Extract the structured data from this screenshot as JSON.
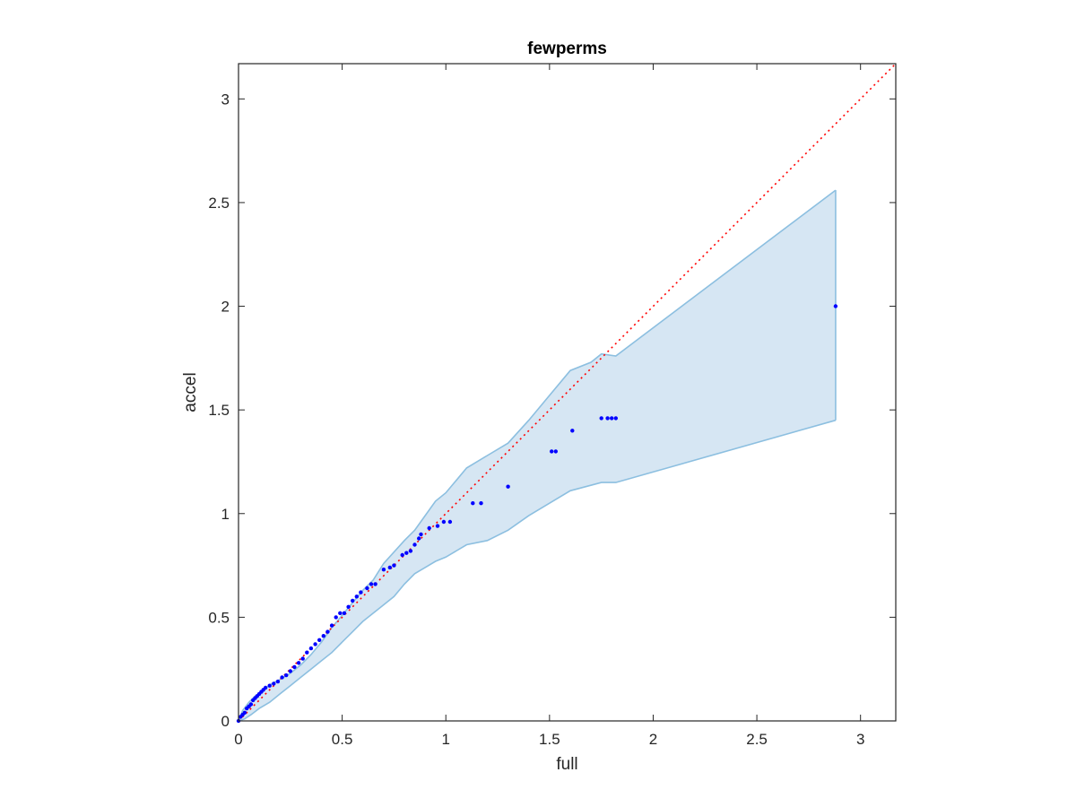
{
  "chart_data": {
    "type": "scatter",
    "title": "fewperms",
    "xlabel": "full",
    "ylabel": "accel",
    "xlim": [
      0,
      3.17
    ],
    "ylim": [
      0,
      3.17
    ],
    "xticks": [
      0,
      0.5,
      1,
      1.5,
      2,
      2.5,
      3
    ],
    "yticks": [
      0,
      0.5,
      1,
      1.5,
      2,
      2.5,
      3
    ],
    "xtick_labels": [
      "0",
      "0.5",
      "1",
      "1.5",
      "2",
      "2.5",
      "3"
    ],
    "ytick_labels": [
      "0",
      "0.5",
      "1",
      "1.5",
      "2",
      "2.5",
      "3"
    ],
    "grid": false,
    "colors": {
      "points": "#0000ff",
      "band_fill": "#d6e6f3",
      "band_edge": "#8cbfe0",
      "reference_line": "#ff0000",
      "axes": "#262626"
    },
    "reference_line": {
      "style": "dotted",
      "from": [
        0,
        0
      ],
      "to": [
        3.17,
        3.17
      ]
    },
    "band": {
      "upper": [
        [
          0,
          0
        ],
        [
          0.02,
          0.05
        ],
        [
          0.05,
          0.09
        ],
        [
          0.08,
          0.12
        ],
        [
          0.12,
          0.15
        ],
        [
          0.16,
          0.18
        ],
        [
          0.2,
          0.2
        ],
        [
          0.25,
          0.23
        ],
        [
          0.3,
          0.27
        ],
        [
          0.35,
          0.32
        ],
        [
          0.4,
          0.38
        ],
        [
          0.45,
          0.45
        ],
        [
          0.5,
          0.51
        ],
        [
          0.55,
          0.57
        ],
        [
          0.6,
          0.63
        ],
        [
          0.65,
          0.68
        ],
        [
          0.7,
          0.76
        ],
        [
          0.8,
          0.87
        ],
        [
          0.85,
          0.92
        ],
        [
          0.9,
          0.99
        ],
        [
          0.95,
          1.06
        ],
        [
          1.0,
          1.1
        ],
        [
          1.05,
          1.16
        ],
        [
          1.1,
          1.22
        ],
        [
          1.2,
          1.28
        ],
        [
          1.3,
          1.34
        ],
        [
          1.4,
          1.45
        ],
        [
          1.5,
          1.57
        ],
        [
          1.6,
          1.69
        ],
        [
          1.7,
          1.73
        ],
        [
          1.75,
          1.77
        ],
        [
          1.82,
          1.76
        ],
        [
          2.88,
          2.56
        ]
      ],
      "lower": [
        [
          0,
          0
        ],
        [
          0.03,
          0.01
        ],
        [
          0.06,
          0.03
        ],
        [
          0.1,
          0.06
        ],
        [
          0.15,
          0.09
        ],
        [
          0.2,
          0.13
        ],
        [
          0.25,
          0.17
        ],
        [
          0.3,
          0.21
        ],
        [
          0.35,
          0.25
        ],
        [
          0.4,
          0.29
        ],
        [
          0.45,
          0.33
        ],
        [
          0.5,
          0.38
        ],
        [
          0.55,
          0.43
        ],
        [
          0.6,
          0.48
        ],
        [
          0.65,
          0.52
        ],
        [
          0.7,
          0.56
        ],
        [
          0.75,
          0.6
        ],
        [
          0.8,
          0.66
        ],
        [
          0.85,
          0.71
        ],
        [
          0.9,
          0.74
        ],
        [
          0.95,
          0.77
        ],
        [
          1.0,
          0.79
        ],
        [
          1.1,
          0.85
        ],
        [
          1.2,
          0.87
        ],
        [
          1.3,
          0.92
        ],
        [
          1.4,
          0.99
        ],
        [
          1.5,
          1.05
        ],
        [
          1.6,
          1.11
        ],
        [
          1.75,
          1.15
        ],
        [
          1.82,
          1.15
        ],
        [
          2.88,
          1.45
        ]
      ]
    },
    "series": [
      {
        "x": [
          0,
          0.01,
          0.02,
          0.03,
          0.04,
          0.05,
          0.06,
          0.07,
          0.08,
          0.09,
          0.1,
          0.11,
          0.12,
          0.13,
          0.15,
          0.17,
          0.19,
          0.21,
          0.23,
          0.25,
          0.27,
          0.29,
          0.31,
          0.33,
          0.35,
          0.37,
          0.39,
          0.41,
          0.43,
          0.45,
          0.47,
          0.49,
          0.51,
          0.53,
          0.55,
          0.57,
          0.59,
          0.62,
          0.64,
          0.66,
          0.7,
          0.73,
          0.75,
          0.79,
          0.81,
          0.83,
          0.85,
          0.87,
          0.88,
          0.92,
          0.96,
          0.99,
          1.02,
          1.13,
          1.17,
          1.3,
          1.51,
          1.53,
          1.61,
          1.75,
          1.78,
          1.8,
          1.82,
          2.88
        ],
        "y": [
          0,
          0.02,
          0.03,
          0.04,
          0.06,
          0.07,
          0.08,
          0.1,
          0.11,
          0.12,
          0.13,
          0.14,
          0.15,
          0.16,
          0.17,
          0.18,
          0.19,
          0.21,
          0.22,
          0.24,
          0.26,
          0.28,
          0.3,
          0.33,
          0.35,
          0.37,
          0.39,
          0.41,
          0.43,
          0.46,
          0.5,
          0.52,
          0.52,
          0.55,
          0.58,
          0.6,
          0.62,
          0.64,
          0.66,
          0.66,
          0.73,
          0.74,
          0.75,
          0.8,
          0.81,
          0.82,
          0.85,
          0.88,
          0.9,
          0.93,
          0.94,
          0.96,
          0.96,
          1.05,
          1.05,
          1.13,
          1.3,
          1.3,
          1.4,
          1.46,
          1.46,
          1.46,
          1.46,
          2.0
        ]
      }
    ]
  }
}
